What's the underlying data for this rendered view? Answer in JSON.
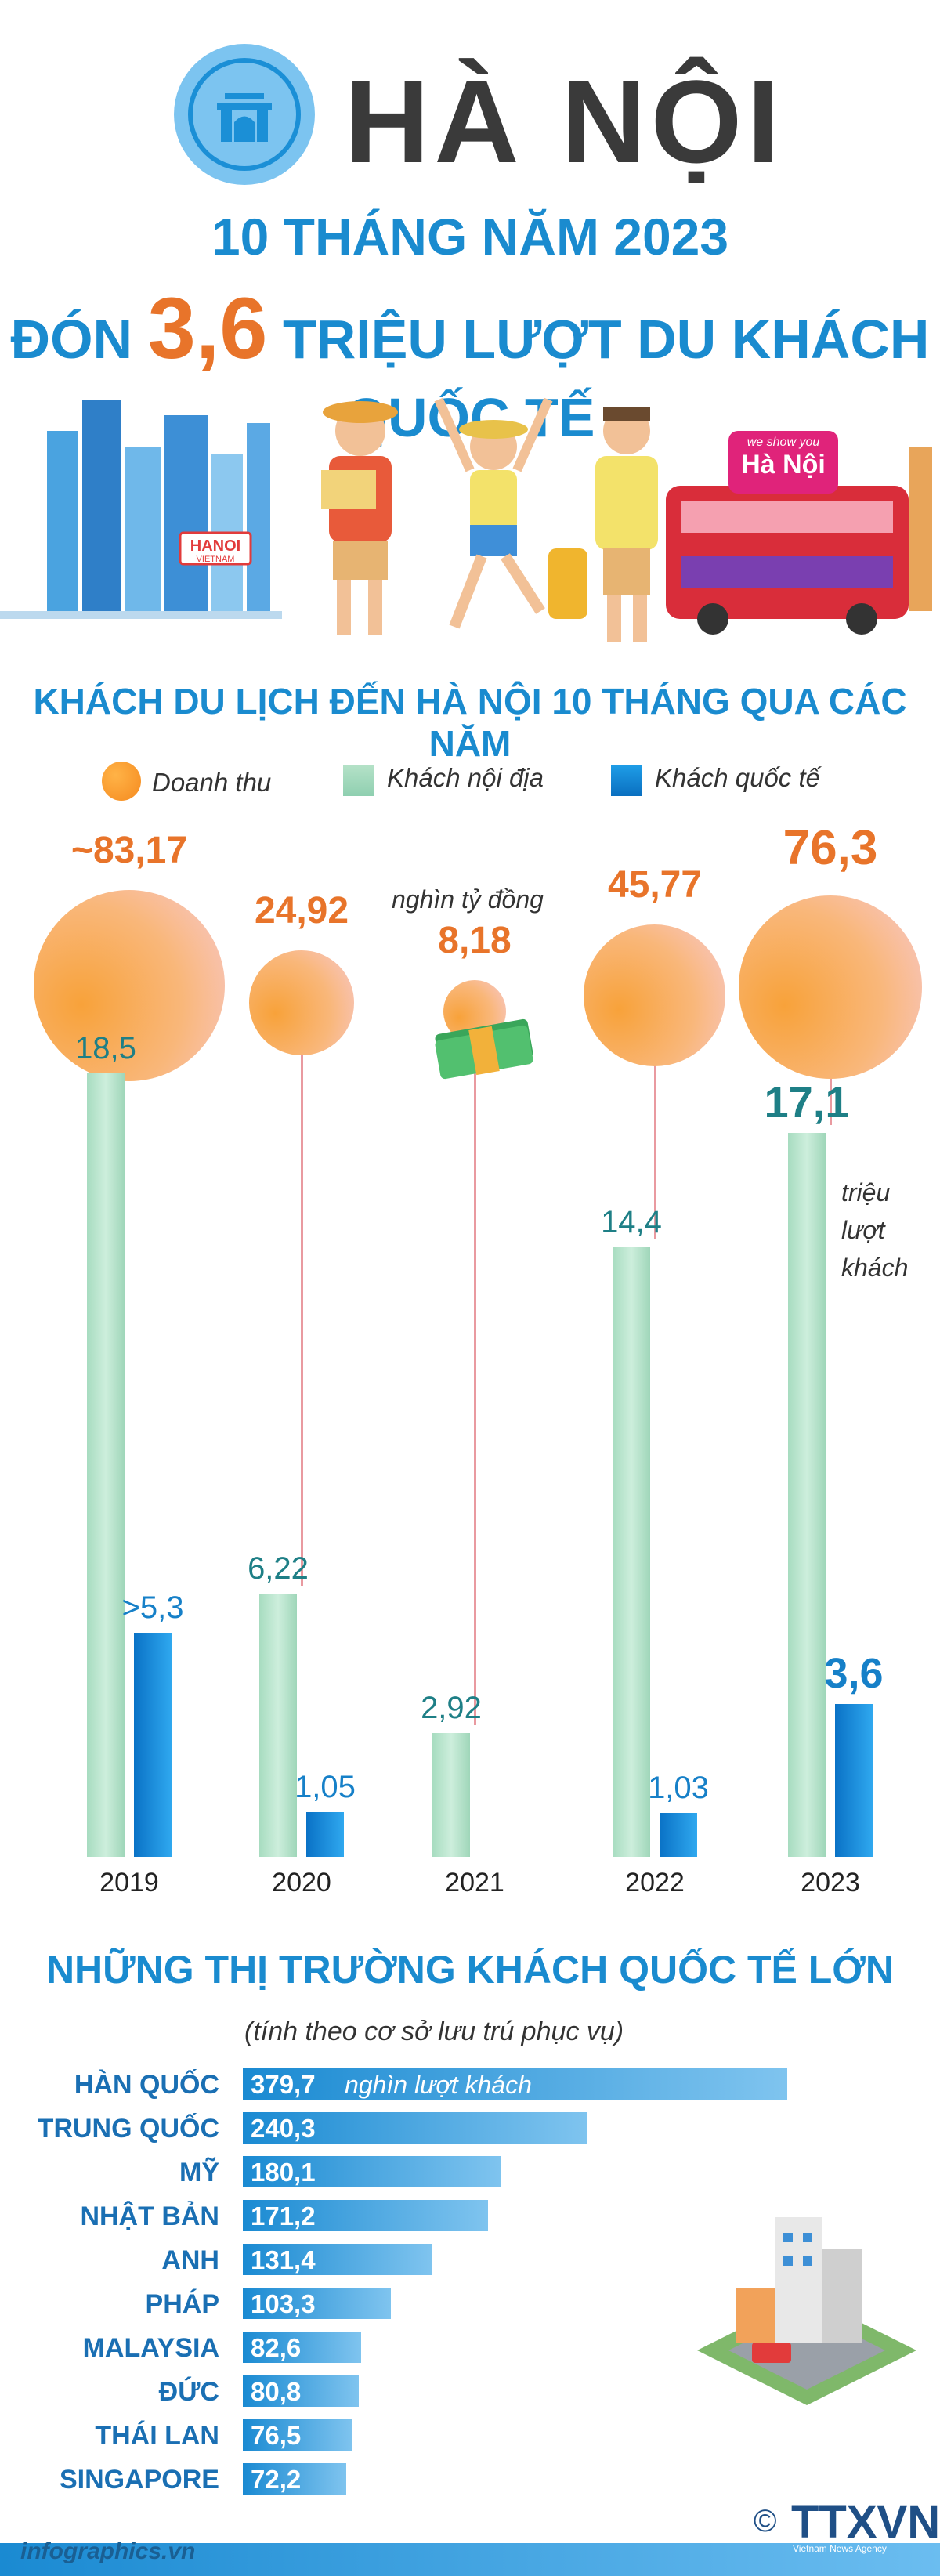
{
  "header": {
    "title": "HÀ NỘI",
    "subtitle_line1": "10 THÁNG NĂM 2023",
    "subtitle_prefix": "ĐÓN",
    "subtitle_number": "3,6",
    "subtitle_suffix": "TRIỆU LƯỢT DU KHÁCH QUỐC TẾ",
    "hanoi_sign": "HANOI",
    "hanoi_sign_sub": "VIETNAM",
    "bus_text_small": "we show you",
    "bus_text_big": "Hà Nội"
  },
  "section1": {
    "title": "KHÁCH DU LỊCH ĐẾN HÀ NỘI 10 THÁNG QUA CÁC NĂM",
    "legend": {
      "revenue": "Doanh thu",
      "domestic": "Khách nội địa",
      "international": "Khách quốc tế"
    },
    "revenue_unit": "nghìn tỷ đồng",
    "visitor_unit_line1": "triệu",
    "visitor_unit_line2": "lượt",
    "visitor_unit_line3": "khách"
  },
  "chart_data": [
    {
      "type": "bar",
      "categories": [
        "2019",
        "2020",
        "2021",
        "2022",
        "2023"
      ],
      "series": [
        {
          "name": "Khách nội địa",
          "values": [
            18.5,
            6.22,
            2.92,
            14.4,
            17.1
          ],
          "labels": [
            "18,5",
            "6,22",
            "2,92",
            "14,4",
            "17,1"
          ]
        },
        {
          "name": "Khách quốc tế",
          "values": [
            5.3,
            1.05,
            0,
            1.03,
            3.6
          ],
          "labels": [
            ">5,3",
            "1,05",
            "",
            "1,03",
            "3,6"
          ]
        },
        {
          "name": "Doanh thu",
          "values": [
            83.17,
            24.92,
            8.18,
            45.77,
            76.3
          ],
          "labels": [
            "~83,17",
            "24,92",
            "8,18",
            "45,77",
            "76,3"
          ]
        }
      ],
      "legend_position": "top"
    },
    {
      "type": "bar",
      "title": "NHỮNG THỊ TRƯỜNG KHÁCH QUỐC TẾ LỚN",
      "subtitle": "(tính theo cơ sở lưu trú phục vụ)",
      "orientation": "horizontal",
      "unit": "nghìn lượt khách",
      "categories": [
        "HÀN QUỐC",
        "TRUNG QUỐC",
        "MỸ",
        "NHẬT BẢN",
        "ANH",
        "PHÁP",
        "MALAYSIA",
        "ĐỨC",
        "THÁI LAN",
        "SINGAPORE"
      ],
      "values": [
        379.7,
        240.3,
        180.1,
        171.2,
        131.4,
        103.3,
        82.6,
        80.8,
        76.5,
        72.2
      ],
      "labels": [
        "379,7",
        "240,3",
        "180,1",
        "171,2",
        "131,4",
        "103,3",
        "82,6",
        "80,8",
        "76,5",
        "72,2"
      ]
    }
  ],
  "footer": {
    "site": "infographics.vn",
    "copyright": "©",
    "logo": "TTXVN",
    "logo_sub": "Vietnam News Agency"
  },
  "colors": {
    "accent_blue": "#1a8bcf",
    "orange": "#e8742a",
    "teal": "#1e7f86"
  }
}
